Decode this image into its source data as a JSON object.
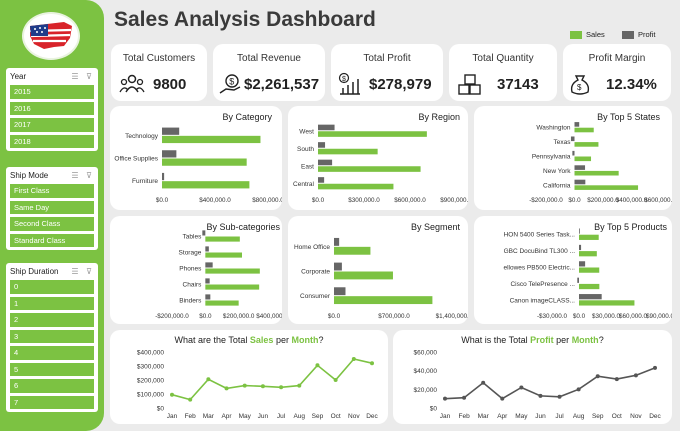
{
  "dashboard": {
    "title": "Sales Analysis Dashboard",
    "legend": {
      "sales": "Sales",
      "profit": "Profit"
    }
  },
  "colors": {
    "accent": "#7cc242",
    "profit": "#666666",
    "line_profit": "#555555"
  },
  "slicers": {
    "year": {
      "title": "Year",
      "items": [
        "2015",
        "2016",
        "2017",
        "2018"
      ]
    },
    "ship_mode": {
      "title": "Ship Mode",
      "items": [
        "First Class",
        "Same Day",
        "Second Class",
        "Standard Class"
      ]
    },
    "ship_duration": {
      "title": "Ship Duration",
      "items": [
        "0",
        "1",
        "2",
        "3",
        "4",
        "5",
        "6",
        "7"
      ]
    }
  },
  "kpis": {
    "customers": {
      "label": "Total Customers",
      "value": "9800",
      "icon": "people-icon"
    },
    "revenue": {
      "label": "Total Revenue",
      "value": "$2,261,537",
      "icon": "money-hand-icon"
    },
    "profit": {
      "label": "Total Profit",
      "value": "$278,979",
      "icon": "growth-chart-icon"
    },
    "quantity": {
      "label": "Total Quantity",
      "value": "37143",
      "icon": "boxes-icon"
    },
    "margin": {
      "label": "Profit Margin",
      "value": "12.34%",
      "icon": "money-bag-icon"
    }
  },
  "chart_data": [
    {
      "id": "category",
      "type": "bar",
      "title": "By Category",
      "categories": [
        "Technology",
        "Office Supplies",
        "Furniture"
      ],
      "series": [
        {
          "name": "Sales",
          "values": [
            836000,
            719000,
            742000
          ]
        },
        {
          "name": "Profit",
          "values": [
            146000,
            122000,
            18000
          ]
        }
      ],
      "xlim": [
        0,
        900000
      ],
      "ticks": [
        "$0.0",
        "$400,000.0",
        "$800,000.0"
      ]
    },
    {
      "id": "region",
      "type": "bar",
      "title": "By Region",
      "categories": [
        "West",
        "South",
        "East",
        "Central"
      ],
      "series": [
        {
          "name": "Sales",
          "values": [
            710000,
            389000,
            669000,
            492000
          ]
        },
        {
          "name": "Profit",
          "values": [
            108000,
            46000,
            92000,
            40000
          ]
        }
      ],
      "xlim": [
        0,
        900000
      ],
      "ticks": [
        "$0.0",
        "$300,000.0",
        "$600,000.0",
        "$900,000.0"
      ]
    },
    {
      "id": "states",
      "type": "bar",
      "title": "By Top 5 States",
      "categories": [
        "Washington",
        "Texas",
        "Pennsylvania",
        "New York",
        "California"
      ],
      "series": [
        {
          "name": "Sales",
          "values": [
            135000,
            168000,
            116000,
            310000,
            446000
          ]
        },
        {
          "name": "Profit",
          "values": [
            33000,
            -25000,
            -15000,
            74000,
            76000
          ]
        }
      ],
      "xlim": [
        -200000,
        600000
      ],
      "ticks": [
        "-$200,000.0",
        "$0.0",
        "$200,000.0",
        "$400,000.0",
        "$600,000.0"
      ]
    },
    {
      "id": "subcat",
      "type": "bar",
      "title": "By Sub-categories",
      "categories": [
        "Tables",
        "Storage",
        "Phones",
        "Chairs",
        "Binders"
      ],
      "series": [
        {
          "name": "Sales",
          "values": [
            207000,
            220000,
            327000,
            323000,
            200000
          ]
        },
        {
          "name": "Profit",
          "values": [
            -18000,
            21000,
            44000,
            26000,
            30000
          ]
        }
      ],
      "xlim": [
        -200000,
        400000
      ],
      "ticks": [
        "-$200,000.0",
        "$0.0",
        "$200,000.0",
        "$400,000.0"
      ]
    },
    {
      "id": "segment",
      "type": "bar",
      "title": "By Segment",
      "categories": [
        "Home Office",
        "Corporate",
        "Consumer"
      ],
      "series": [
        {
          "name": "Sales",
          "values": [
            425000,
            688000,
            1148000
          ]
        },
        {
          "name": "Profit",
          "values": [
            60000,
            92000,
            134000
          ]
        }
      ],
      "xlim": [
        0,
        1400000
      ],
      "ticks": [
        "$0.0",
        "$700,000.0",
        "$1,400,000.0"
      ]
    },
    {
      "id": "products",
      "type": "bar",
      "title": "By Top 5 Products",
      "categories": [
        "HON 5400 Series Task...",
        "GBC DocuBind TL300 ...",
        "ellowes PB500 Electric...",
        "Cisco TelePresence ...",
        "Canon imageCLASS..."
      ],
      "series": [
        {
          "name": "Sales",
          "values": [
            21900,
            19800,
            22500,
            22600,
            61600
          ]
        },
        {
          "name": "Profit",
          "values": [
            0,
            2300,
            6800,
            -1900,
            25200
          ]
        }
      ],
      "xlim": [
        -30000,
        90000
      ],
      "ticks": [
        "-$30,000.0",
        "$0.0",
        "$30,000.0",
        "$60,000.0",
        "$90,000.0"
      ]
    },
    {
      "id": "sales_month",
      "type": "line",
      "title": {
        "prefix": "What are the Total ",
        "metric": "Sales",
        "mid": " per ",
        "period": "Month",
        "suffix": "?"
      },
      "categories": [
        "Jan",
        "Feb",
        "Mar",
        "Apr",
        "May",
        "Jun",
        "Jul",
        "Aug",
        "Sep",
        "Oct",
        "Nov",
        "Dec"
      ],
      "series": [
        {
          "name": "Sales",
          "values": [
            95000,
            60000,
            205000,
            140000,
            160000,
            155000,
            148000,
            160000,
            305000,
            200000,
            350000,
            320000
          ]
        }
      ],
      "ylim": [
        0,
        400000
      ],
      "ticks": [
        "$0",
        "$100,000",
        "$200,000",
        "$300,000",
        "$400,000"
      ]
    },
    {
      "id": "profit_month",
      "type": "line",
      "title": {
        "prefix": "What is the Total ",
        "metric": "Profit",
        "mid": " per ",
        "period": "Month",
        "suffix": "?"
      },
      "categories": [
        "Jan",
        "Feb",
        "Mar",
        "Apr",
        "May",
        "Jun",
        "Jul",
        "Aug",
        "Sep",
        "Oct",
        "Nov",
        "Dec"
      ],
      "series": [
        {
          "name": "Profit",
          "values": [
            10000,
            11000,
            27000,
            10000,
            22000,
            13000,
            12000,
            20000,
            34000,
            31000,
            35000,
            43000
          ]
        }
      ],
      "ylim": [
        0,
        60000
      ],
      "ticks": [
        "$0",
        "$20,000",
        "$40,000",
        "$60,000"
      ]
    }
  ]
}
